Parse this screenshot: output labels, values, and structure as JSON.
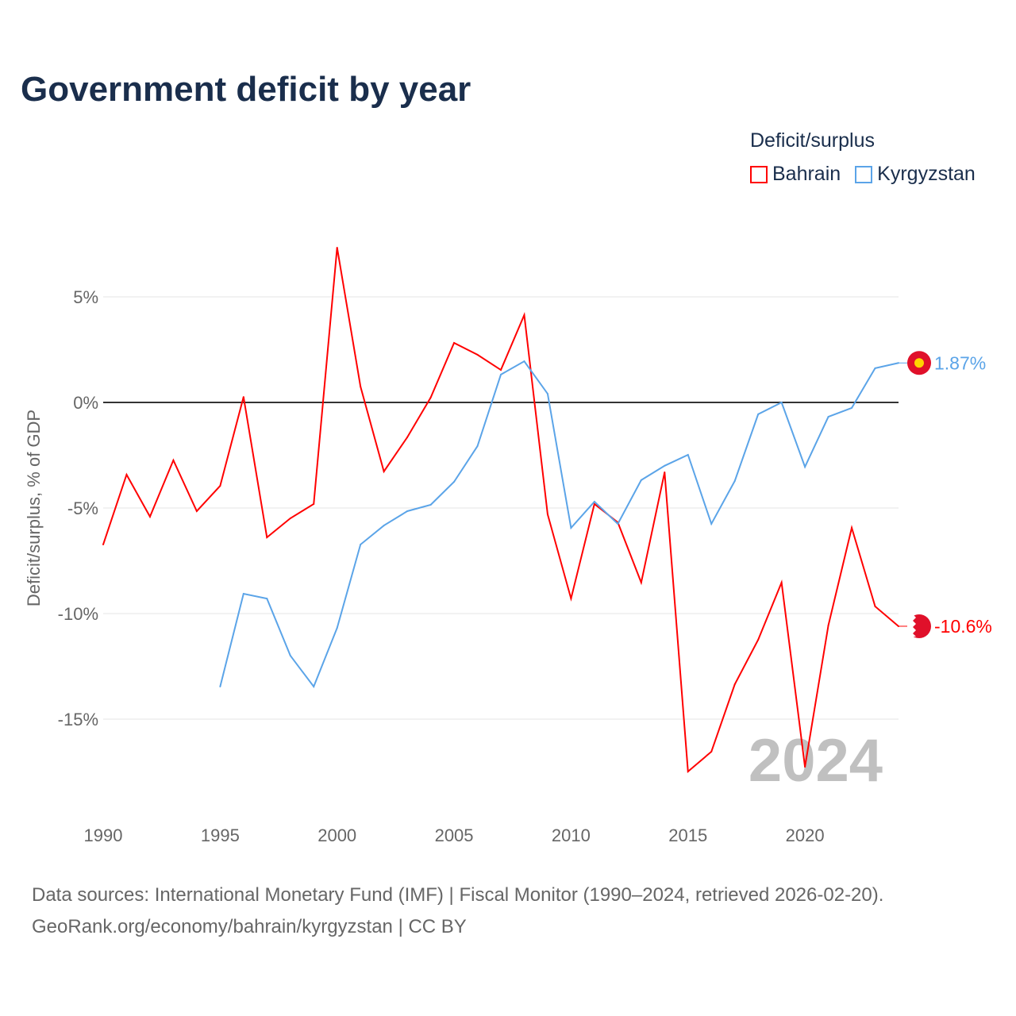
{
  "title": "Government deficit by year",
  "legend": {
    "title": "Deficit/surplus",
    "items": [
      {
        "label": "Bahrain",
        "color": "#ff0000"
      },
      {
        "label": "Kyrgyzstan",
        "color": "#5ba4e8"
      }
    ]
  },
  "watermark_year": "2024",
  "source_lines": [
    "Data sources: International Monetary Fund (IMF) | Fiscal Monitor (1990–2024, retrieved 2026-02-20).",
    "GeoRank.org/economy/bahrain/kyrgyzstan | CC BY"
  ],
  "chart_data": {
    "type": "line",
    "title": "Government deficit by year",
    "xlabel": "",
    "ylabel": "Deficit/surplus, % of GDP",
    "xlim": [
      1990,
      2024
    ],
    "ylim": [
      -19.5,
      8.5
    ],
    "x_ticks": [
      1990,
      1995,
      2000,
      2005,
      2010,
      2015,
      2020
    ],
    "x_tick_labels": [
      "1990",
      "1995",
      "2000",
      "2005",
      "2010",
      "2015",
      "2020"
    ],
    "y_ticks": [
      5,
      0,
      -5,
      -10,
      -15
    ],
    "y_tick_labels": [
      "5%",
      "0%",
      "-5%",
      "-10%",
      "-15%"
    ],
    "grid": true,
    "legend_position": "top-right",
    "series": [
      {
        "name": "Bahrain",
        "color": "#ff0000",
        "end_label": "-10.6%",
        "x": [
          1990,
          1991,
          1992,
          1993,
          1994,
          1995,
          1996,
          1997,
          1998,
          1999,
          2000,
          2001,
          2002,
          2003,
          2004,
          2005,
          2006,
          2007,
          2008,
          2009,
          2010,
          2011,
          2012,
          2013,
          2014,
          2015,
          2016,
          2017,
          2018,
          2019,
          2020,
          2021,
          2022,
          2023,
          2024
        ],
        "values": [
          -6.73,
          -3.42,
          -5.41,
          -2.74,
          -5.15,
          -3.95,
          0.26,
          -6.39,
          -5.49,
          -4.81,
          7.33,
          0.75,
          -3.27,
          -1.65,
          0.23,
          2.82,
          2.26,
          1.54,
          4.14,
          -5.3,
          -9.29,
          -4.81,
          -5.68,
          -8.53,
          -3.31,
          -17.48,
          -16.54,
          -13.35,
          -11.24,
          -8.53,
          -17.26,
          -10.56,
          -5.94,
          -9.66,
          -10.6
        ]
      },
      {
        "name": "Kyrgyzstan",
        "color": "#5ba4e8",
        "end_label": "1.87%",
        "x": [
          1995,
          1996,
          1997,
          1998,
          1999,
          2000,
          2001,
          2002,
          2003,
          2004,
          2005,
          2006,
          2007,
          2008,
          2009,
          2010,
          2011,
          2012,
          2013,
          2014,
          2015,
          2016,
          2017,
          2018,
          2019,
          2020,
          2021,
          2022,
          2023,
          2024
        ],
        "values": [
          -13.46,
          -9.06,
          -9.29,
          -11.99,
          -13.46,
          -10.68,
          -6.73,
          -5.83,
          -5.15,
          -4.85,
          -3.76,
          -2.07,
          1.32,
          1.95,
          0.41,
          -5.94,
          -4.7,
          -5.75,
          -3.68,
          -3.0,
          -2.48,
          -5.75,
          -3.72,
          -0.56,
          0.0,
          -3.05,
          -0.68,
          -0.26,
          1.62,
          1.87
        ]
      }
    ]
  }
}
